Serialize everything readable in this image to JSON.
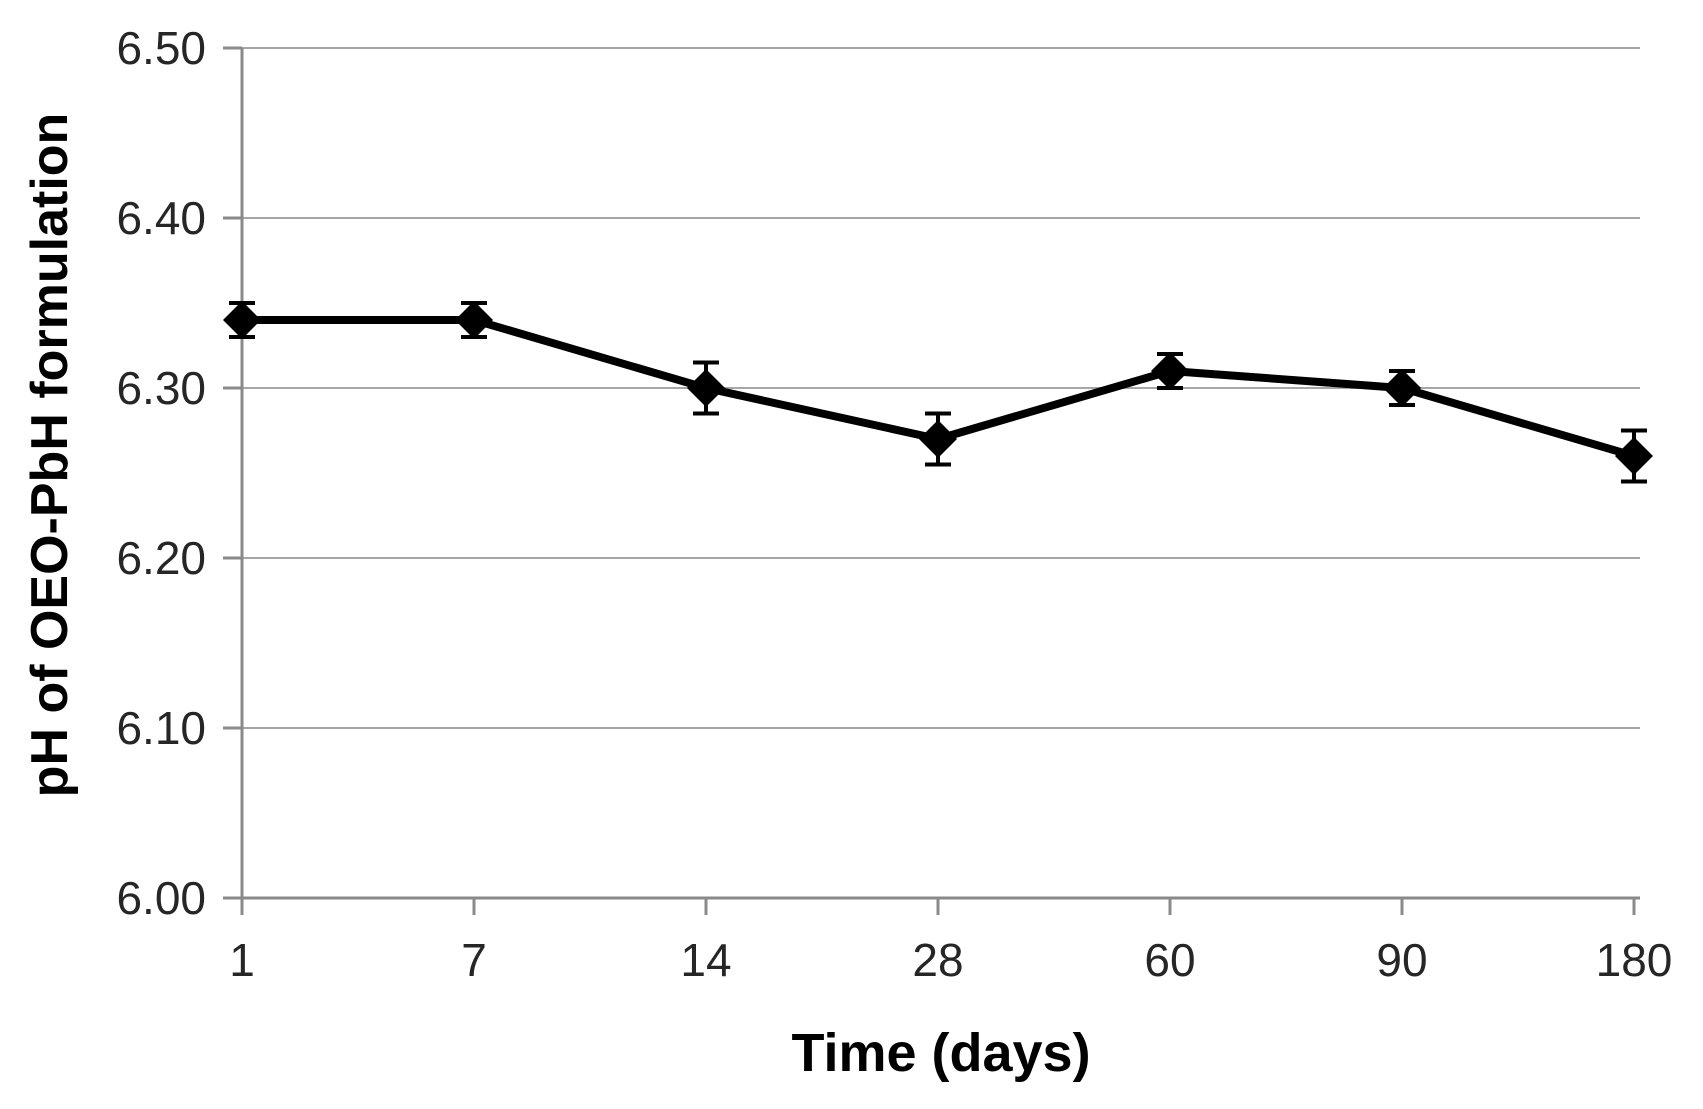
{
  "chart_data": {
    "type": "line",
    "x_axis_type": "categorical",
    "categories": [
      "1",
      "7",
      "14",
      "28",
      "60",
      "90",
      "180"
    ],
    "series": [
      {
        "name": "pH of OEO-PbH formulation",
        "values": [
          6.34,
          6.34,
          6.3,
          6.27,
          6.31,
          6.3,
          6.26
        ],
        "error_bars": [
          0.01,
          0.01,
          0.015,
          0.015,
          0.01,
          0.01,
          0.015
        ],
        "marker": "diamond",
        "color": "#000000"
      }
    ],
    "title": "",
    "xlabel": "Time (days)",
    "ylabel": "pH of OEO-PbH formulation",
    "ylim": [
      6.0,
      6.5
    ],
    "ytick_step": 0.1,
    "ytick_labels": [
      "6.00",
      "6.10",
      "6.20",
      "6.30",
      "6.40",
      "6.50"
    ],
    "grid": true,
    "legend_position": "none",
    "colors": {
      "line": "#000000",
      "marker": "#000000",
      "error_bar": "#000000",
      "gridline": "#a6a6a6",
      "axis": "#8a8a8a",
      "tick_label": "#262626",
      "axis_title": "#000000",
      "background": "#ffffff"
    }
  }
}
